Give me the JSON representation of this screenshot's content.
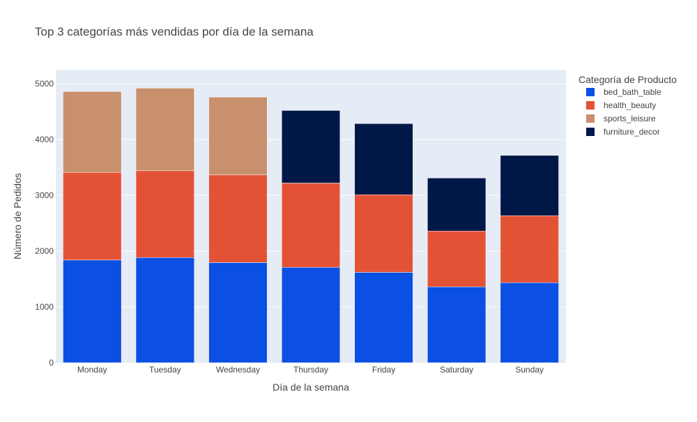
{
  "chart_data": {
    "type": "bar",
    "stacked": true,
    "title": "Top 3 categorías más vendidas por día de la semana",
    "xlabel": "Día de la semana",
    "ylabel": "Número de Pedidos",
    "ylim": [
      0,
      5250
    ],
    "yticks": [
      0,
      1000,
      2000,
      3000,
      4000,
      5000
    ],
    "ytick_labels": [
      "0",
      "1000",
      "2000",
      "3000",
      "4000",
      "5000"
    ],
    "grid": true,
    "legend_position": "right",
    "legend_title": "Categoría de Producto",
    "categories": [
      "Monday",
      "Tuesday",
      "Wednesday",
      "Thursday",
      "Friday",
      "Saturday",
      "Sunday"
    ],
    "series": [
      {
        "name": "bed_bath_table",
        "color": "#0b4fe3",
        "values": [
          1840,
          1885,
          1795,
          1710,
          1620,
          1360,
          1435
        ]
      },
      {
        "name": "health_beauty",
        "color": "#e45236",
        "values": [
          1570,
          1555,
          1570,
          1510,
          1390,
          1000,
          1200
        ]
      },
      {
        "name": "sports_leisure",
        "color": "#c8906c",
        "values": [
          1450,
          1480,
          1395,
          0,
          0,
          0,
          0
        ]
      },
      {
        "name": "furniture_decor",
        "color": "#001848",
        "values": [
          0,
          0,
          0,
          1300,
          1275,
          950,
          1080
        ]
      }
    ],
    "plot_background": "#e5ecf6"
  }
}
